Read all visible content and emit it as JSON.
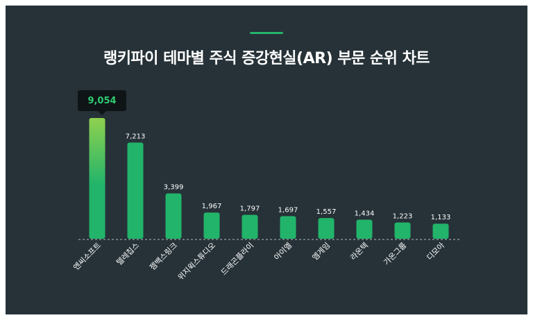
{
  "title": "랭키파이 테마별 주식 증강현실(AR) 부문 순위 차트",
  "tooltip": {
    "value": "9,054"
  },
  "colors": {
    "background": "#263238",
    "bar": "#22b46a",
    "bar_highlight_top": "#8fd14f",
    "accent": "#26b36a",
    "tooltip_text": "#2ecc71"
  },
  "chart_data": {
    "type": "bar",
    "title": "랭키파이 테마별 주식 증강현실(AR) 부문 순위 차트",
    "categories": [
      "엔씨소프트",
      "텔레칩스",
      "젬백스링크",
      "위지윅스튜디오",
      "드래곤플라이",
      "아이엘",
      "엠게임",
      "라온텍",
      "가온그룹",
      "디모아"
    ],
    "values": [
      9054,
      7213,
      3399,
      1967,
      1797,
      1697,
      1557,
      1434,
      1223,
      1133
    ],
    "value_labels": [
      "9,054",
      "7,213",
      "3,399",
      "1,967",
      "1,797",
      "1,697",
      "1,557",
      "1,434",
      "1,223",
      "1,133"
    ],
    "highlighted_index": 0,
    "xlabel": "",
    "ylabel": "",
    "ylim": [
      0,
      9054
    ],
    "grid": false,
    "legend": "none"
  }
}
